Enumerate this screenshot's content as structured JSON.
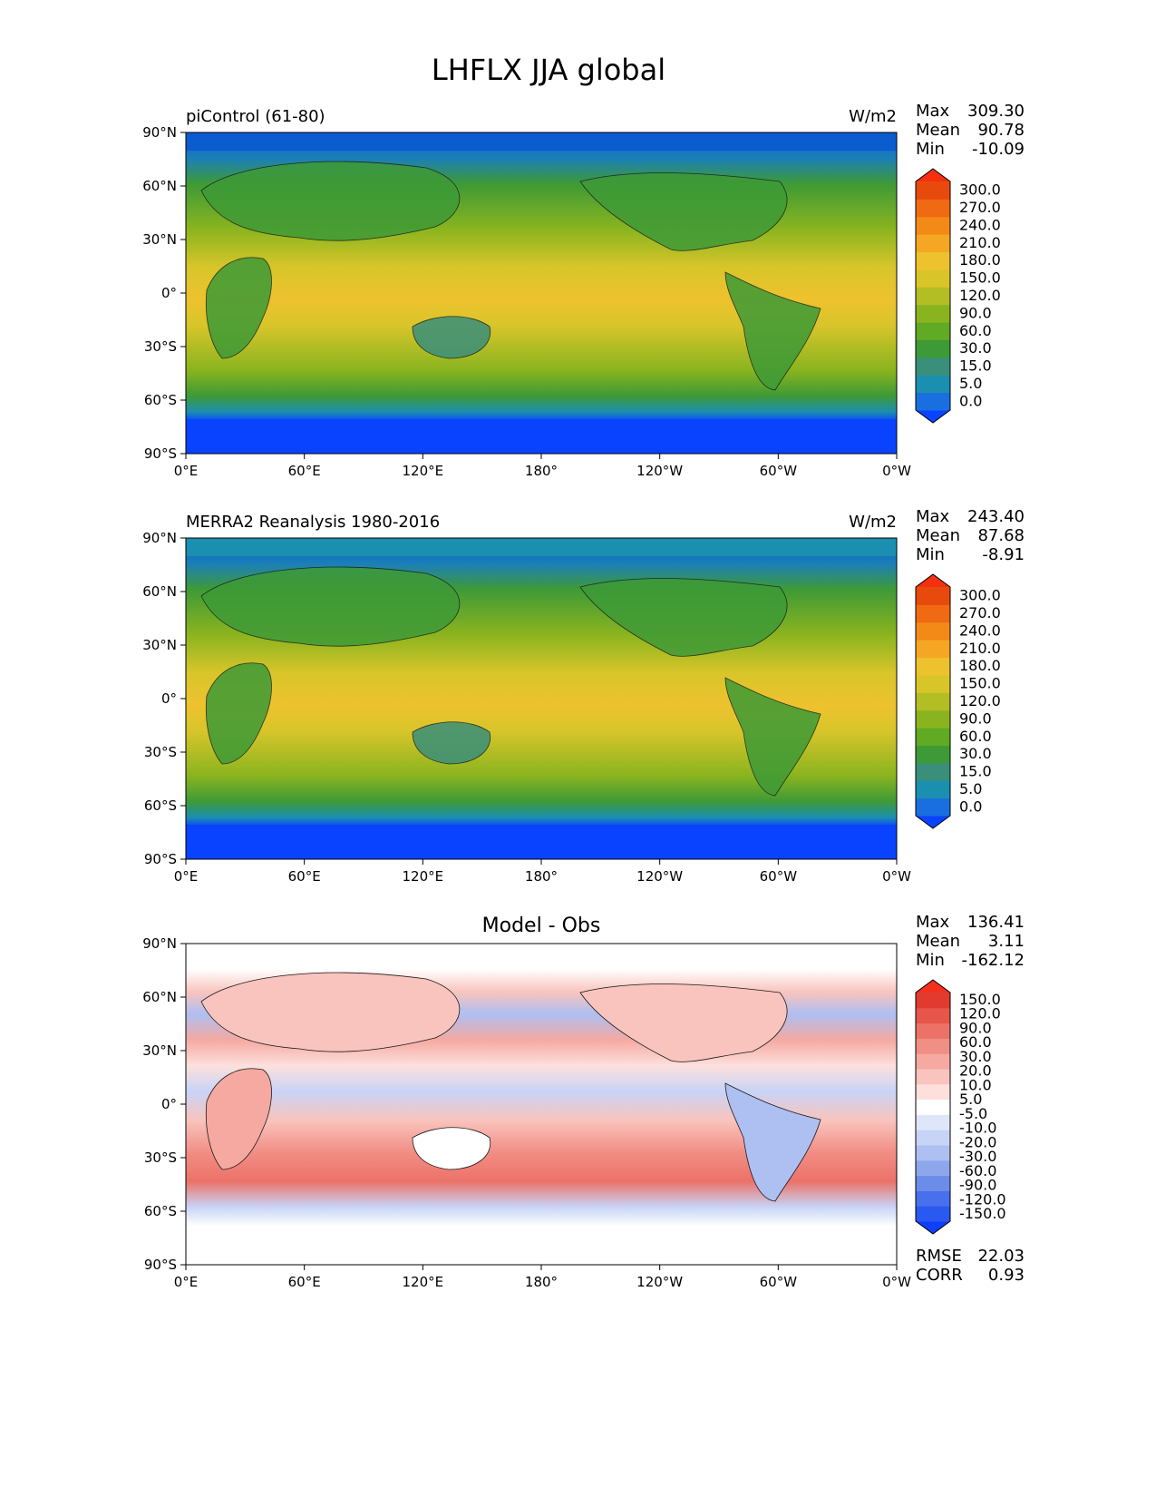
{
  "figure": {
    "title": "LHFLX JJA global"
  },
  "axes": {
    "lat_ticks": [
      "90°N",
      "60°N",
      "30°N",
      "0°",
      "30°S",
      "60°S",
      "90°S"
    ],
    "lon_ticks": [
      "0°E",
      "60°E",
      "120°E",
      "180°",
      "120°W",
      "60°W",
      "0°W"
    ]
  },
  "colors": {
    "mean_field_levels": [
      "#0a43ff",
      "#1a6fe0",
      "#1b8fb0",
      "#3a8f7a",
      "#3e9a36",
      "#60aa24",
      "#8ab41f",
      "#b3be24",
      "#d8c52a",
      "#eec22e",
      "#f5a623",
      "#f38a17",
      "#ef6a12",
      "#e84a0d",
      "#f4300f"
    ],
    "diff_levels": [
      "#0e3ffb",
      "#2a59f1",
      "#4870ec",
      "#6b8ce9",
      "#8ea6ec",
      "#aebff2",
      "#c8d4f6",
      "#dfe6fa",
      "#ffffff",
      "#fde0dc",
      "#f9c4bd",
      "#f5a9a1",
      "#f18e85",
      "#ec7268",
      "#e8554a",
      "#e13b2f",
      "#f5301d"
    ]
  },
  "chart_data": [
    {
      "type": "heatmap",
      "panel": "top",
      "left_title": "piControl (61-80)",
      "units": "W/m2",
      "stats": {
        "max_label": "Max",
        "max": "309.30",
        "mean_label": "Mean",
        "mean": "90.78",
        "min_label": "Min",
        "min": "-10.09"
      },
      "colorbar_labels": [
        "0.0",
        "5.0",
        "15.0",
        "30.0",
        "60.0",
        "90.0",
        "120.0",
        "150.0",
        "180.0",
        "210.0",
        "240.0",
        "270.0",
        "300.0"
      ],
      "lon_range": [
        0,
        360
      ],
      "lat_range": [
        -90,
        90
      ]
    },
    {
      "type": "heatmap",
      "panel": "middle",
      "left_title": "MERRA2 Reanalysis 1980-2016",
      "units": "W/m2",
      "stats": {
        "max_label": "Max",
        "max": "243.40",
        "mean_label": "Mean",
        "mean": "87.68",
        "min_label": "Min",
        "min": "-8.91"
      },
      "colorbar_labels": [
        "0.0",
        "5.0",
        "15.0",
        "30.0",
        "60.0",
        "90.0",
        "120.0",
        "150.0",
        "180.0",
        "210.0",
        "240.0",
        "270.0",
        "300.0"
      ],
      "lon_range": [
        0,
        360
      ],
      "lat_range": [
        -90,
        90
      ]
    },
    {
      "type": "heatmap",
      "panel": "bottom",
      "center_title": "Model - Obs",
      "stats": {
        "max_label": "Max",
        "max": "136.41",
        "mean_label": "Mean",
        "mean": "3.11",
        "min_label": "Min",
        "min": "-162.12"
      },
      "colorbar_labels": [
        "-150.0",
        "-120.0",
        "-90.0",
        "-60.0",
        "-30.0",
        "-20.0",
        "-10.0",
        "-5.0",
        "5.0",
        "10.0",
        "20.0",
        "30.0",
        "60.0",
        "90.0",
        "120.0",
        "150.0"
      ],
      "rmse_label": "RMSE",
      "rmse": "22.03",
      "corr_label": "CORR",
      "corr": "0.93",
      "lon_range": [
        0,
        360
      ],
      "lat_range": [
        -90,
        90
      ]
    }
  ]
}
